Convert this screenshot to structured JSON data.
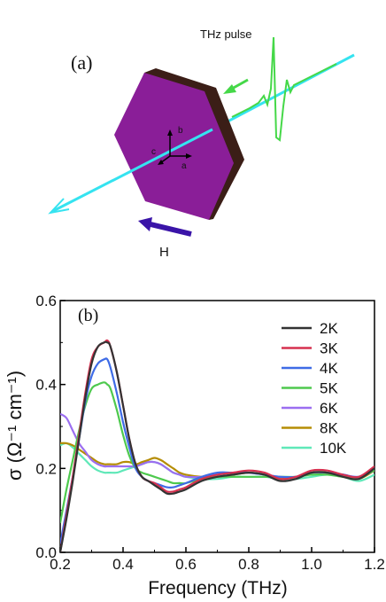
{
  "panel_a": {
    "label": "(a)",
    "pulse_label": "THz pulse",
    "field_label": "H",
    "axes": {
      "a": "a",
      "b": "b",
      "c": "c"
    },
    "colors": {
      "crystal": "#8a1e98",
      "crystal_edge": "#3b1e17",
      "beam": "#35e3f0",
      "pulse": "#45d848",
      "field_arrow": "#3a14a8"
    }
  },
  "panel_b": {
    "label": "(b)",
    "y_axis_label": "σ (Ω⁻¹ cm⁻¹)",
    "x_axis_label": "Frequency (THz)"
  },
  "chart_data": {
    "type": "line",
    "title": "",
    "xlabel": "Frequency (THz)",
    "ylabel": "σ (Ω⁻¹ cm⁻¹)",
    "xlim": [
      0.2,
      1.2
    ],
    "ylim": [
      0.0,
      0.6
    ],
    "xticks": [
      "0.2",
      "0.4",
      "0.6",
      "0.8",
      "1.0",
      "1.2"
    ],
    "yticks": [
      "0.0",
      "0.2",
      "0.4",
      "0.6"
    ],
    "grid": false,
    "legend_position": "right",
    "x": [
      0.2,
      0.22,
      0.24,
      0.26,
      0.28,
      0.3,
      0.32,
      0.34,
      0.35,
      0.36,
      0.38,
      0.4,
      0.42,
      0.44,
      0.46,
      0.48,
      0.5,
      0.52,
      0.54,
      0.56,
      0.58,
      0.6,
      0.65,
      0.7,
      0.75,
      0.8,
      0.85,
      0.9,
      0.95,
      1.0,
      1.05,
      1.1,
      1.15,
      1.2
    ],
    "series": [
      {
        "name": "2K",
        "color": "#333333",
        "values": [
          0.0,
          0.08,
          0.17,
          0.27,
          0.37,
          0.45,
          0.49,
          0.5,
          0.5,
          0.49,
          0.43,
          0.35,
          0.27,
          0.21,
          0.18,
          0.17,
          0.16,
          0.15,
          0.14,
          0.14,
          0.145,
          0.15,
          0.17,
          0.18,
          0.185,
          0.19,
          0.185,
          0.17,
          0.175,
          0.19,
          0.19,
          0.18,
          0.175,
          0.2
        ]
      },
      {
        "name": "3K",
        "color": "#d6304f",
        "values": [
          0.0,
          0.09,
          0.18,
          0.28,
          0.38,
          0.46,
          0.49,
          0.5,
          0.505,
          0.49,
          0.43,
          0.35,
          0.27,
          0.21,
          0.18,
          0.17,
          0.165,
          0.155,
          0.145,
          0.145,
          0.15,
          0.155,
          0.175,
          0.185,
          0.19,
          0.195,
          0.19,
          0.175,
          0.18,
          0.195,
          0.195,
          0.185,
          0.18,
          0.205
        ]
      },
      {
        "name": "4K",
        "color": "#3e6be6",
        "values": [
          0.02,
          0.1,
          0.18,
          0.27,
          0.36,
          0.42,
          0.45,
          0.46,
          0.46,
          0.44,
          0.38,
          0.31,
          0.25,
          0.2,
          0.18,
          0.17,
          0.165,
          0.16,
          0.155,
          0.155,
          0.16,
          0.165,
          0.18,
          0.19,
          0.19,
          0.19,
          0.185,
          0.18,
          0.18,
          0.19,
          0.19,
          0.185,
          0.18,
          0.2
        ]
      },
      {
        "name": "5K",
        "color": "#4ec94e",
        "values": [
          0.07,
          0.15,
          0.22,
          0.29,
          0.35,
          0.39,
          0.4,
          0.405,
          0.4,
          0.39,
          0.34,
          0.28,
          0.23,
          0.2,
          0.19,
          0.185,
          0.18,
          0.175,
          0.17,
          0.165,
          0.165,
          0.165,
          0.175,
          0.18,
          0.18,
          0.18,
          0.18,
          0.18,
          0.18,
          0.185,
          0.185,
          0.18,
          0.18,
          0.195
        ]
      },
      {
        "name": "6K",
        "color": "#9b6ef0",
        "values": [
          0.33,
          0.32,
          0.29,
          0.26,
          0.24,
          0.22,
          0.21,
          0.205,
          0.205,
          0.205,
          0.205,
          0.205,
          0.205,
          0.205,
          0.21,
          0.215,
          0.215,
          0.21,
          0.2,
          0.19,
          0.185,
          0.18,
          0.18,
          0.185,
          0.19,
          0.19,
          0.185,
          0.18,
          0.18,
          0.19,
          0.19,
          0.185,
          0.18,
          0.195
        ]
      },
      {
        "name": "8K",
        "color": "#b58d05",
        "values": [
          0.26,
          0.26,
          0.255,
          0.245,
          0.235,
          0.225,
          0.215,
          0.21,
          0.21,
          0.21,
          0.21,
          0.215,
          0.215,
          0.21,
          0.215,
          0.22,
          0.225,
          0.22,
          0.21,
          0.2,
          0.19,
          0.185,
          0.18,
          0.18,
          0.185,
          0.19,
          0.185,
          0.175,
          0.18,
          0.19,
          0.19,
          0.18,
          0.175,
          0.195
        ]
      },
      {
        "name": "10K",
        "color": "#5fe8b8",
        "values": [
          0.255,
          0.26,
          0.25,
          0.235,
          0.22,
          0.205,
          0.195,
          0.19,
          0.19,
          0.19,
          0.19,
          0.195,
          0.2,
          0.205,
          0.21,
          0.215,
          0.215,
          0.21,
          0.2,
          0.19,
          0.185,
          0.18,
          0.175,
          0.175,
          0.18,
          0.18,
          0.18,
          0.175,
          0.175,
          0.18,
          0.185,
          0.18,
          0.17,
          0.185
        ]
      }
    ]
  }
}
